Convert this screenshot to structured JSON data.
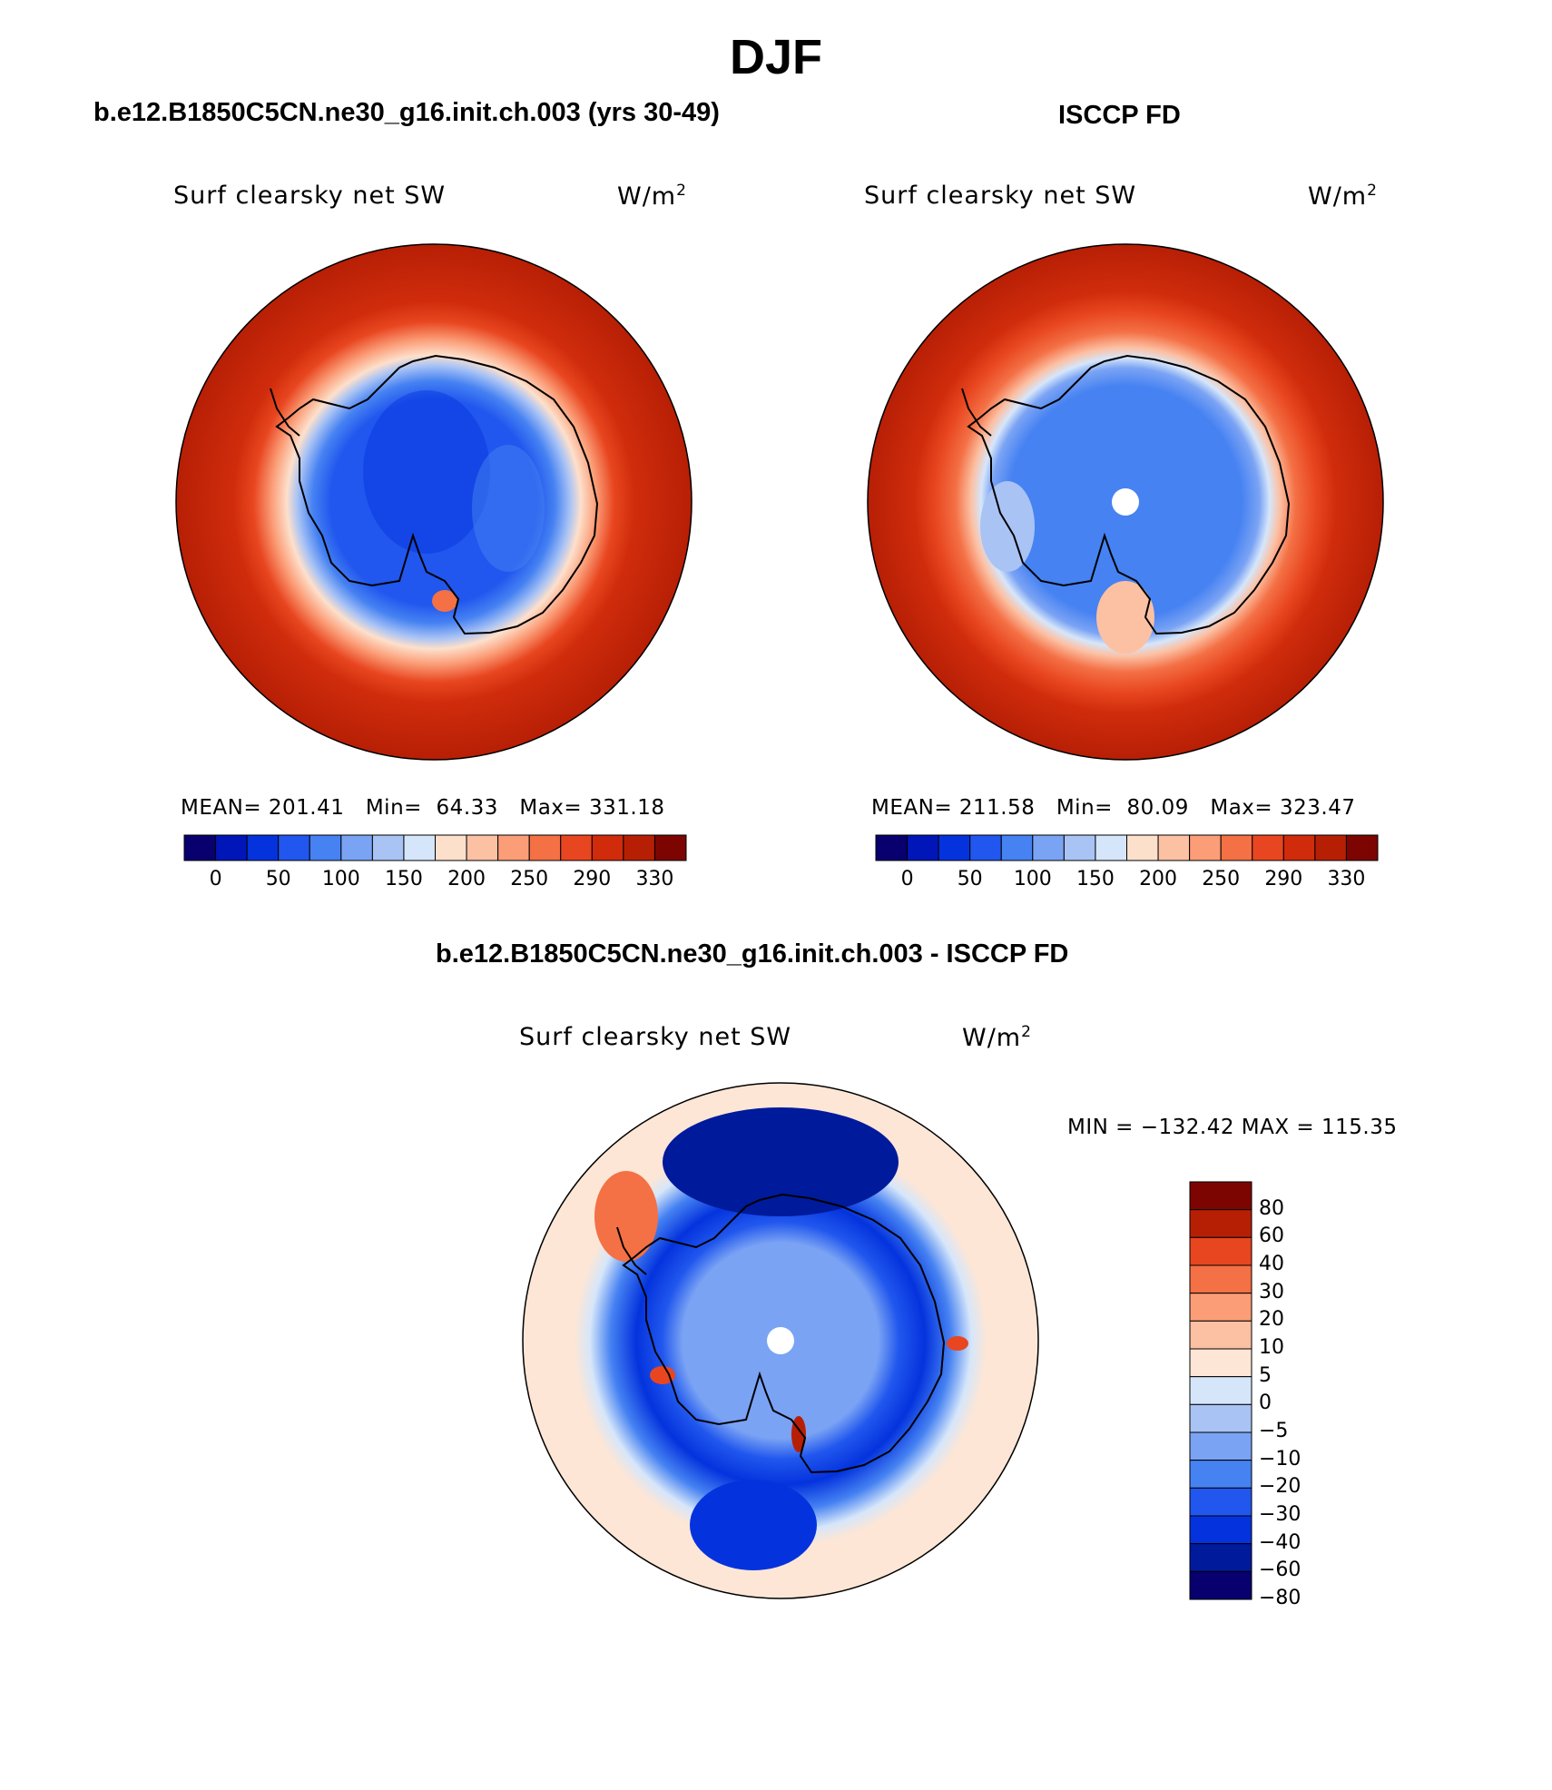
{
  "title": "DJF",
  "panels": [
    {
      "id": "model",
      "case_title": "b.e12.B1850C5CN.ne30_g16.init.ch.003 (yrs 30-49)",
      "variable": "Surf clearsky net SW",
      "units": "W/m",
      "units_exp": "2",
      "stats": {
        "mean_label": "MEAN=",
        "mean": "201.41",
        "min_label": "Min=",
        "min": "64.33",
        "max_label": "Max=",
        "max": "331.18"
      }
    },
    {
      "id": "obs",
      "case_title": "ISCCP FD",
      "variable": "Surf clearsky net SW",
      "units": "W/m",
      "units_exp": "2",
      "stats": {
        "mean_label": "MEAN=",
        "mean": "211.58",
        "min_label": "Min=",
        "min": "80.09",
        "max_label": "Max=",
        "max": "323.47"
      }
    }
  ],
  "difference": {
    "case_title": "b.e12.B1850C5CN.ne30_g16.init.ch.003 - ISCCP FD",
    "variable": "Surf clearsky net SW",
    "units": "W/m",
    "units_exp": "2",
    "minmax_text": "MIN = −132.42 MAX = 115.35"
  },
  "colors": {
    "abs_scale": [
      "#08006e",
      "#0016b8",
      "#0433dd",
      "#2157ee",
      "#4682f2",
      "#7aa3f4",
      "#a9c3f5",
      "#d6e6fa",
      "#fde0cc",
      "#fcc0a3",
      "#fb9d77",
      "#f47045",
      "#e84620",
      "#d02c0c",
      "#b71f05",
      "#7d0501"
    ],
    "diff_scale": [
      "#08006e",
      "#001a9c",
      "#0433dd",
      "#2157ee",
      "#4682f2",
      "#7aa3f4",
      "#a9c3f5",
      "#d6e6fa",
      "#fde6d6",
      "#fcc0a3",
      "#fb9d77",
      "#f47045",
      "#e84620",
      "#b71f05",
      "#7d0501"
    ]
  },
  "chart_data": [
    {
      "type": "heatmap",
      "title": "Surf clearsky net SW",
      "subtitle": "b.e12.B1850C5CN.ne30_g16.init.ch.003 (yrs 30-49)",
      "projection": "south-polar-stereographic",
      "colorbar_ticks": [
        "0",
        "50",
        "100",
        "150",
        "200",
        "250",
        "290",
        "330"
      ],
      "levels": [
        0,
        25,
        50,
        75,
        100,
        125,
        150,
        175,
        200,
        225,
        250,
        270,
        290,
        310,
        330
      ],
      "radial_profile": [
        {
          "lat": -90,
          "value": 75
        },
        {
          "lat": -75,
          "value": 95
        },
        {
          "lat": -68,
          "value": 130
        },
        {
          "lat": -64,
          "value": 160
        },
        {
          "lat": -60,
          "value": 210
        },
        {
          "lat": -55,
          "value": 250
        },
        {
          "lat": -50,
          "value": 290
        },
        {
          "lat": -45,
          "value": 315
        },
        {
          "lat": -40,
          "value": 325
        }
      ]
    },
    {
      "type": "heatmap",
      "title": "Surf clearsky net SW",
      "subtitle": "ISCCP FD",
      "projection": "south-polar-stereographic",
      "colorbar_ticks": [
        "0",
        "50",
        "100",
        "150",
        "200",
        "250",
        "290",
        "330"
      ],
      "levels": [
        0,
        25,
        50,
        75,
        100,
        125,
        150,
        175,
        200,
        225,
        250,
        270,
        290,
        310,
        330
      ],
      "radial_profile": [
        {
          "lat": -90,
          "value": 110
        },
        {
          "lat": -75,
          "value": 110
        },
        {
          "lat": -68,
          "value": 115
        },
        {
          "lat": -64,
          "value": 155
        },
        {
          "lat": -60,
          "value": 220
        },
        {
          "lat": -55,
          "value": 270
        },
        {
          "lat": -50,
          "value": 300
        },
        {
          "lat": -45,
          "value": 315
        },
        {
          "lat": -40,
          "value": 320
        }
      ]
    },
    {
      "type": "heatmap",
      "title": "Surf clearsky net SW",
      "subtitle": "b.e12.B1850C5CN.ne30_g16.init.ch.003 - ISCCP FD",
      "projection": "south-polar-stereographic",
      "colorbar_ticks": [
        "80",
        "60",
        "40",
        "30",
        "20",
        "10",
        "5",
        "0",
        "−5",
        "−10",
        "−20",
        "−30",
        "−40",
        "−60",
        "−80"
      ],
      "levels": [
        -80,
        -60,
        -40,
        -30,
        -20,
        -10,
        -5,
        0,
        5,
        10,
        20,
        30,
        40,
        60,
        80
      ],
      "radial_profile": [
        {
          "lat": -85,
          "value": -15
        },
        {
          "lat": -75,
          "value": -20
        },
        {
          "lat": -68,
          "value": -30
        },
        {
          "lat": -64,
          "value": -60
        },
        {
          "lat": -60,
          "value": -40
        },
        {
          "lat": -55,
          "value": -20
        },
        {
          "lat": -50,
          "value": 2
        },
        {
          "lat": -45,
          "value": 3
        }
      ]
    }
  ]
}
